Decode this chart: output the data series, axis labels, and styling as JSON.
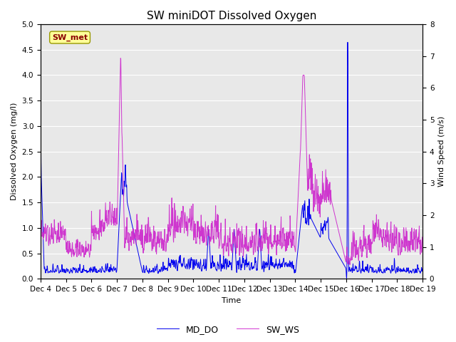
{
  "title": "SW miniDOT Dissolved Oxygen",
  "xlabel": "Time",
  "ylabel_left": "Dissolved Oxygen (mg/l)",
  "ylabel_right": "Wind Speed (m/s)",
  "ylim_left": [
    0.0,
    5.0
  ],
  "ylim_right": [
    0.0,
    8.0
  ],
  "yticks_left": [
    0.0,
    0.5,
    1.0,
    1.5,
    2.0,
    2.5,
    3.0,
    3.5,
    4.0,
    4.5,
    5.0
  ],
  "yticks_right": [
    0.0,
    1.0,
    2.0,
    3.0,
    4.0,
    5.0,
    6.0,
    7.0,
    8.0
  ],
  "color_DO": "#0000EE",
  "color_WS": "#CC22CC",
  "annotation_text": "SW_met",
  "annotation_color": "#8B0000",
  "annotation_bg": "#FFFF99",
  "annotation_edge": "#999900",
  "legend_labels": [
    "MD_DO",
    "SW_WS"
  ],
  "background_color": "#E8E8E8",
  "grid_color": "#FFFFFF",
  "title_fontsize": 11,
  "label_fontsize": 8,
  "tick_fontsize": 7.5,
  "legend_fontsize": 9,
  "n_points": 1500
}
